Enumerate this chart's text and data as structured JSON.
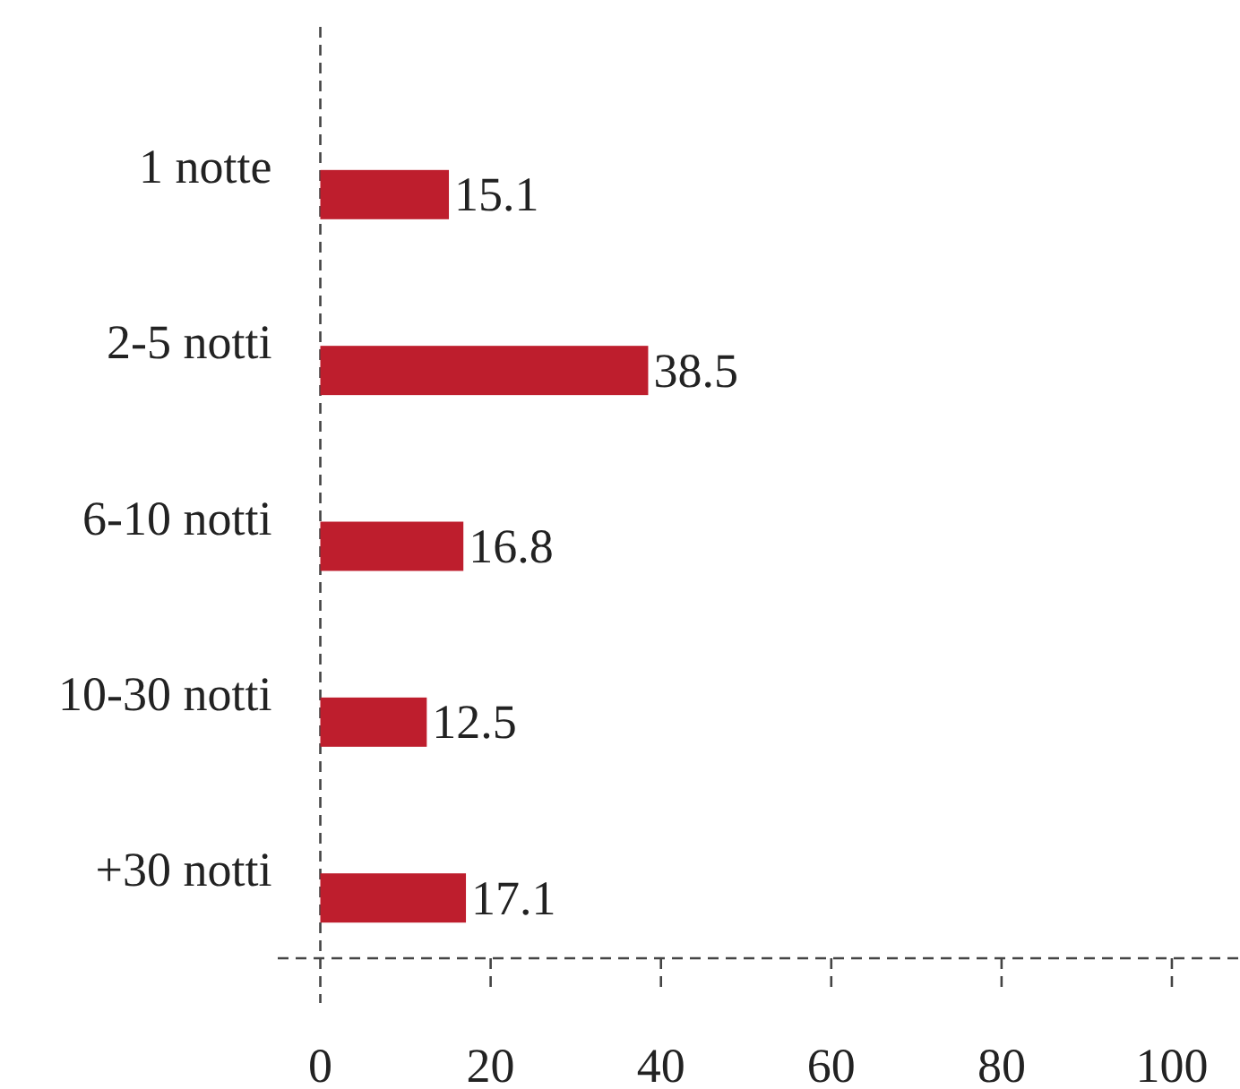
{
  "chart_data": {
    "type": "bar",
    "orientation": "horizontal",
    "categories": [
      "1 notte",
      "2-5 notti",
      "6-10 notti",
      "10-30 notti",
      "+30 notti"
    ],
    "values": [
      15.1,
      38.5,
      16.8,
      12.5,
      17.1
    ],
    "color": "#be1e2d",
    "data_labels": true,
    "line_style": "dashed",
    "xlim": [
      -5,
      108
    ],
    "xticks": [
      0,
      20,
      40,
      60,
      80,
      100
    ]
  }
}
